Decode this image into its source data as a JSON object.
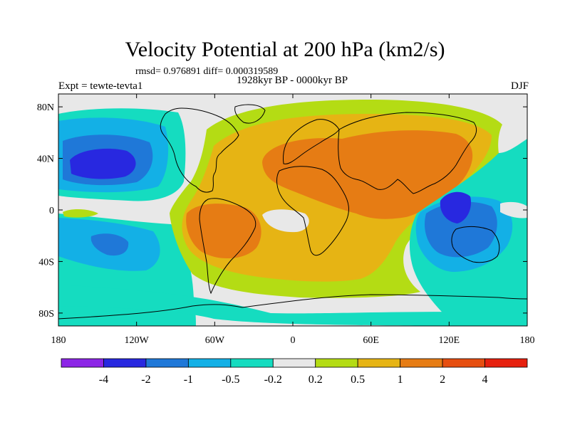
{
  "title": "Velocity Potential at 200 hPa (km2/s)",
  "stats": "rmsd= 0.976891 diff= 0.000319589",
  "left_label": "Expt = tewte-tevta1",
  "center_label": "1928kyr BP - 0000kyr BP",
  "right_label": "DJF",
  "lat_ticks": [
    "80N",
    "40N",
    "0",
    "40S",
    "80S"
  ],
  "lat_values": [
    80,
    40,
    0,
    -40,
    -80
  ],
  "lon_ticks": [
    "180",
    "120W",
    "60W",
    "0",
    "60E",
    "120E",
    "180"
  ],
  "lon_values": [
    -180,
    -120,
    -60,
    0,
    60,
    120,
    180
  ],
  "colorbar": {
    "colors": [
      "#8c25e6",
      "#2828e0",
      "#1f78d8",
      "#13b0e6",
      "#15dcc0",
      "#e8e8e8",
      "#b4dc14",
      "#e6b414",
      "#e67c14",
      "#e64e10",
      "#e6200e"
    ],
    "labels": [
      "-4",
      "-2",
      "-1",
      "-0.5",
      "-0.2",
      "0.2",
      "0.5",
      "1",
      "2",
      "4"
    ]
  }
}
